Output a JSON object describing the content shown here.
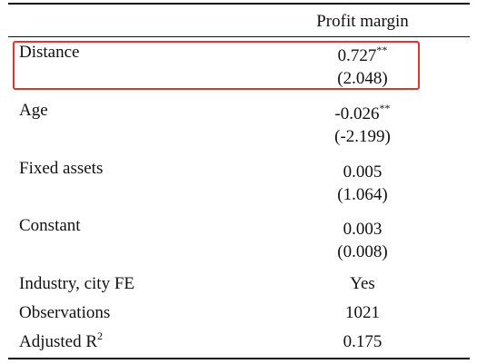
{
  "table": {
    "column_header": "Profit margin",
    "rows": [
      {
        "label": "Distance",
        "value": "0.727",
        "stars": "**",
        "se": "(2.048)"
      },
      {
        "label": "Age",
        "value": "-0.026",
        "stars": "**",
        "se": "(-2.199)"
      },
      {
        "label": "Fixed assets",
        "value": "0.005",
        "stars": "",
        "se": "(1.064)"
      },
      {
        "label": "Constant",
        "value": "0.003",
        "stars": "",
        "se": "(0.008)"
      }
    ],
    "footer": [
      {
        "label": "Industry, city FE",
        "value": "Yes"
      },
      {
        "label": "Observations",
        "value": "1021"
      },
      {
        "label": "Adjusted R",
        "label_sup": "2",
        "value": "0.175"
      }
    ]
  },
  "highlight": {
    "color": "#e8302d",
    "target": "Distance"
  }
}
